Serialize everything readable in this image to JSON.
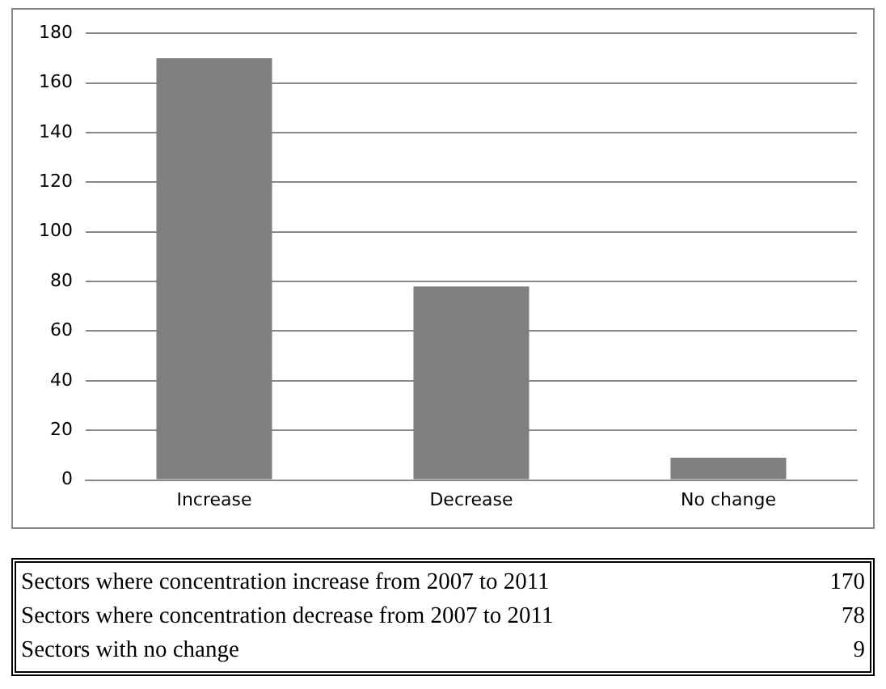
{
  "chart_data": {
    "type": "bar",
    "categories": [
      "Increase",
      "Decrease",
      "No change"
    ],
    "values": [
      170,
      78,
      9
    ],
    "color": "#808080",
    "ylim": [
      0,
      180
    ],
    "yticks": [
      0,
      20,
      40,
      60,
      80,
      100,
      120,
      140,
      160,
      180
    ],
    "grid": "y",
    "legend": false,
    "annotations": [
      "Sectors where concentration increase from 2007 to 2011",
      "170",
      "Sectors where concentration decrease from 2007 to 2011",
      "78",
      "Sectors with no change",
      "9"
    ]
  }
}
